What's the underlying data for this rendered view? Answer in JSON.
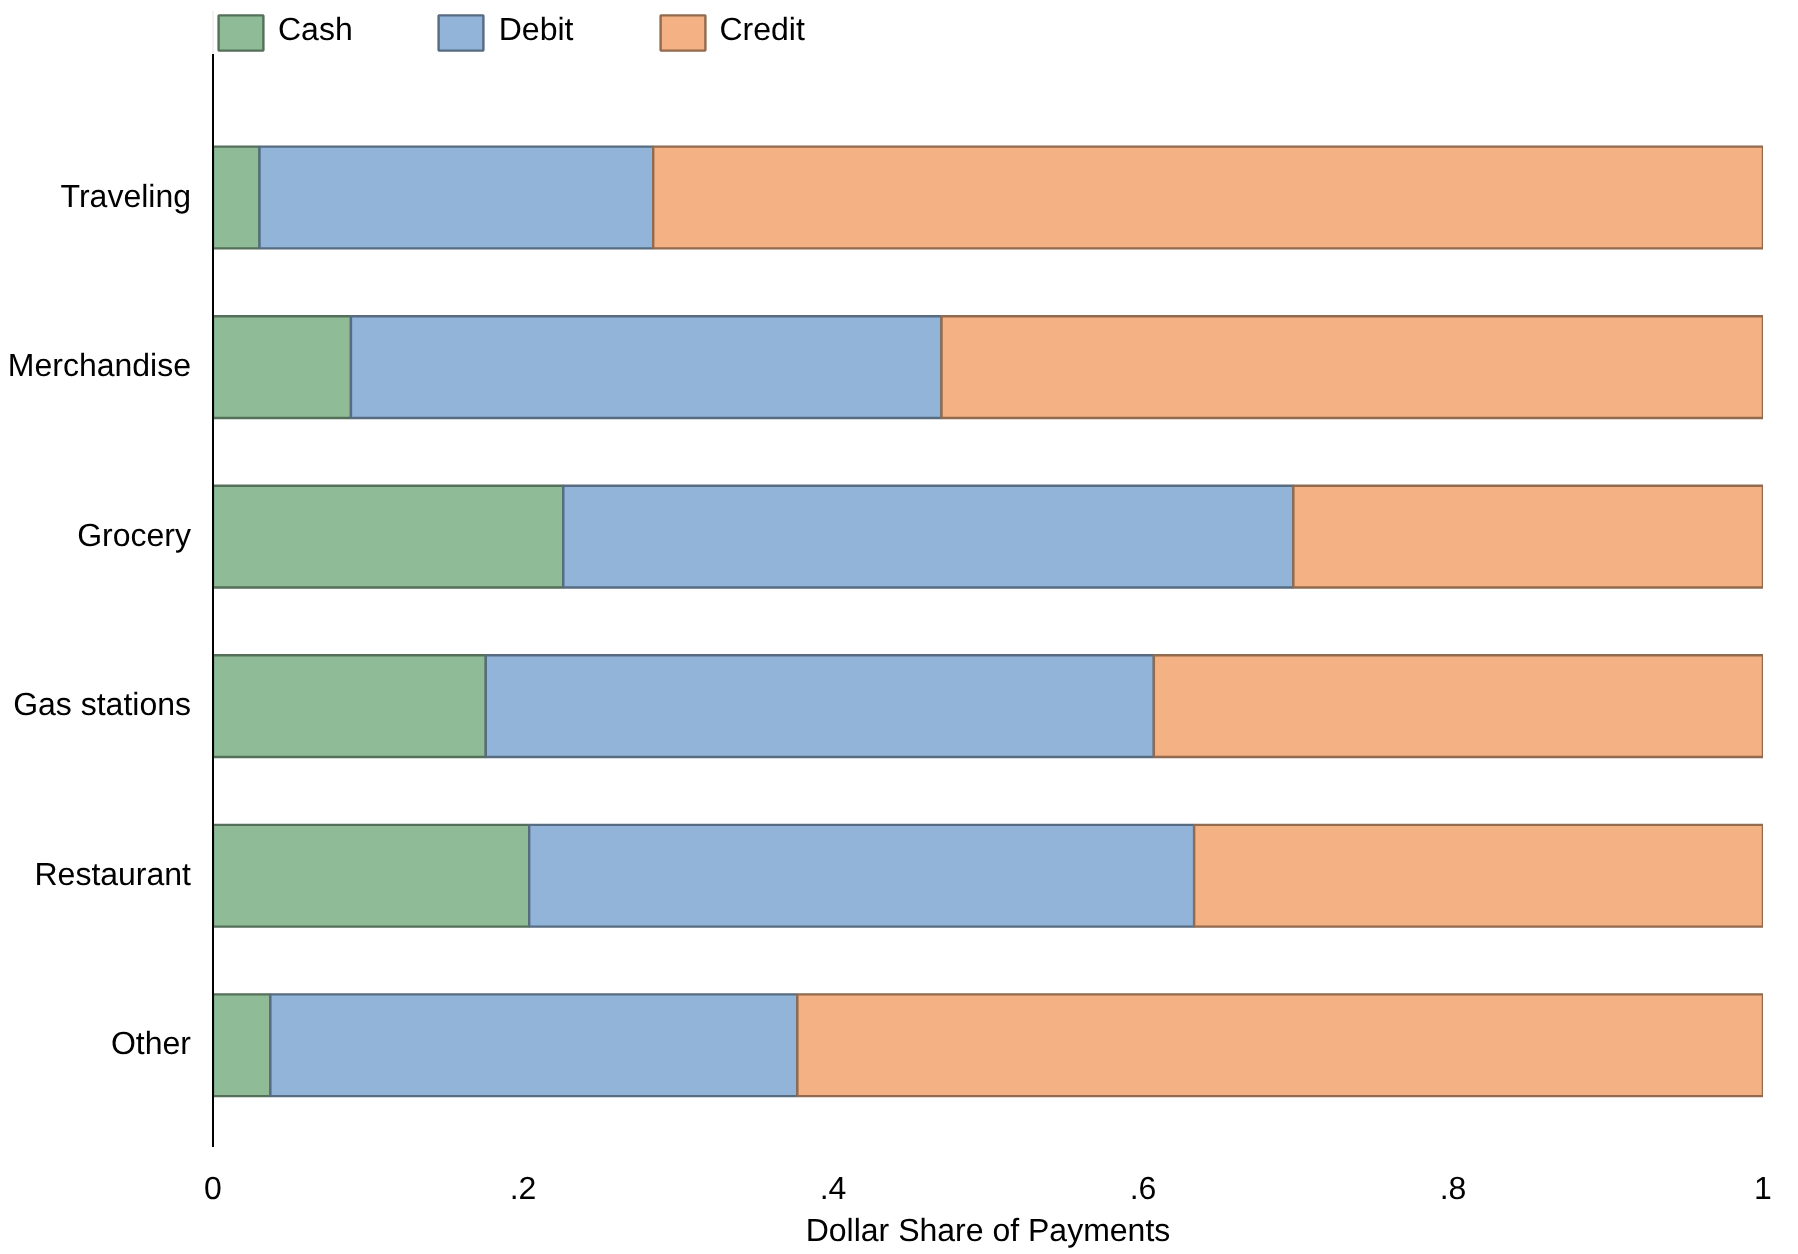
{
  "chart_data": {
    "type": "bar",
    "orientation": "horizontal",
    "stacked": true,
    "xlabel": "Dollar Share of Payments",
    "categories": [
      "Traveling",
      "Merchandise",
      "Grocery",
      "Gas stations",
      "Restaurant",
      "Other"
    ],
    "series": [
      {
        "name": "Cash",
        "color": "#8fbc96",
        "values": [
          0.03,
          0.089,
          0.226,
          0.176,
          0.204,
          0.037
        ]
      },
      {
        "name": "Debit",
        "color": "#92b4d8",
        "values": [
          0.254,
          0.381,
          0.471,
          0.431,
          0.429,
          0.34
        ]
      },
      {
        "name": "Credit",
        "color": "#f4b183",
        "values": [
          0.716,
          0.53,
          0.303,
          0.393,
          0.367,
          0.623
        ]
      }
    ],
    "xlim": [
      0,
      1
    ],
    "xticks": [
      0,
      {
        "value": 0.2,
        "label": ".2"
      },
      {
        "value": 0.4,
        "label": ".4"
      },
      {
        "value": 0.6,
        "label": ".6"
      },
      {
        "value": 0.8,
        "label": ".8"
      },
      1
    ],
    "grid": false,
    "legend": "top"
  }
}
